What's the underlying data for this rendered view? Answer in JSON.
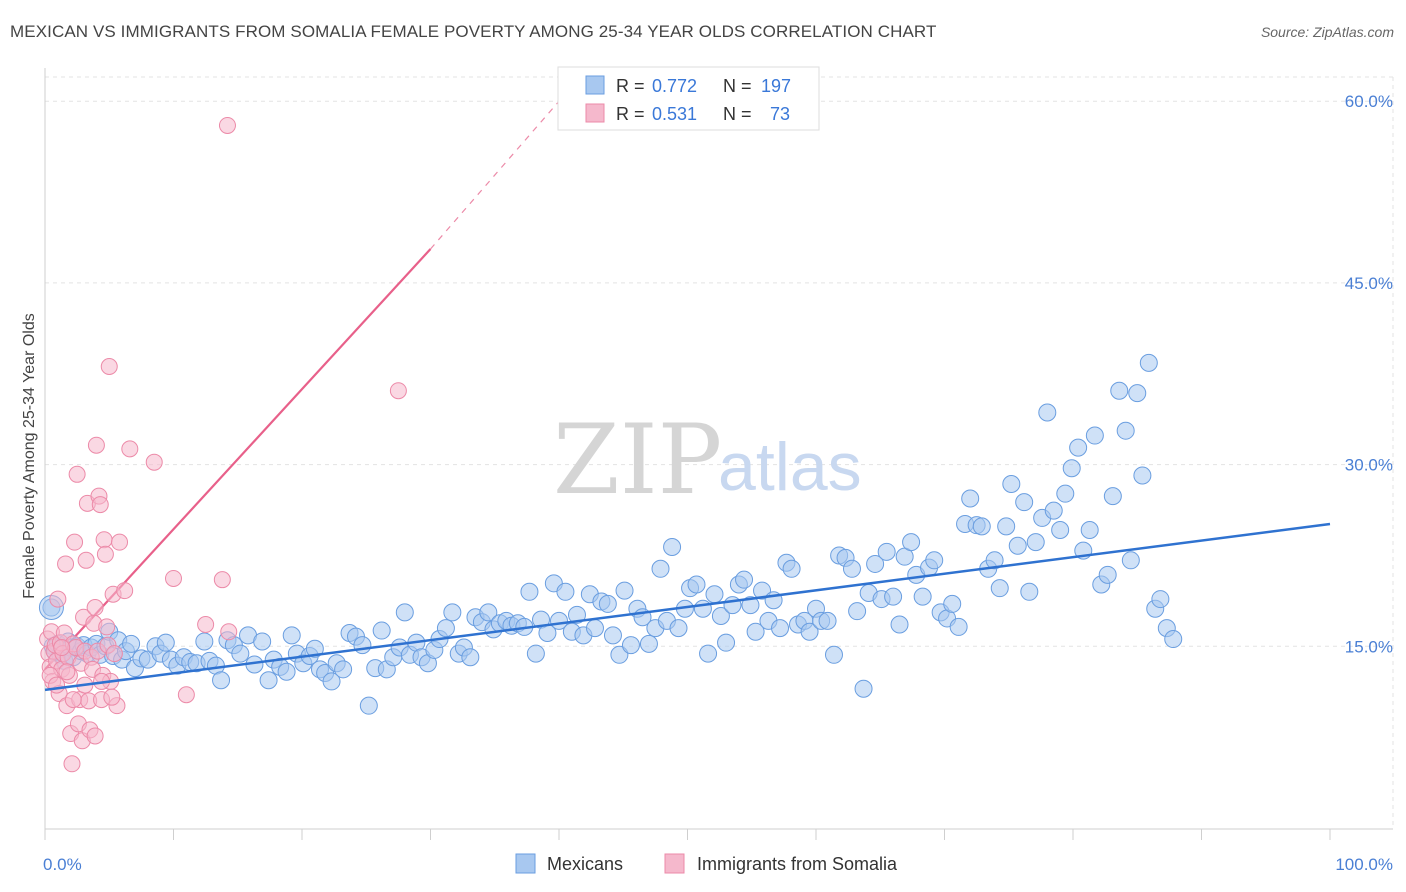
{
  "title": "MEXICAN VS IMMIGRANTS FROM SOMALIA FEMALE POVERTY AMONG 25-34 YEAR OLDS CORRELATION CHART",
  "source": "Source: ZipAtlas.com",
  "colors": {
    "mexicans_fill": "#a8c8f0",
    "mexicans_stroke": "#6a9ee0",
    "mexicans_line": "#2f72d0",
    "somalia_fill": "#f5b8cc",
    "somalia_stroke": "#ec8aa8",
    "somalia_line": "#e8608a",
    "grid": "#e3e3e3",
    "tick_label": "#4a7fd4"
  },
  "watermark": {
    "zip": "ZIP",
    "atlas": "atlas"
  },
  "legend": {
    "r_label": "R =",
    "n_label": "N =",
    "rows": [
      {
        "name": "Mexicans",
        "r": "0.772",
        "n": "197"
      },
      {
        "name": "Immigrants from Somalia",
        "r": "0.531",
        "n": "73"
      }
    ]
  },
  "chart_data": {
    "type": "scatter",
    "title": "MEXICAN VS IMMIGRANTS FROM SOMALIA FEMALE POVERTY AMONG 25-34 YEAR OLDS CORRELATION CHART",
    "xlabel": "",
    "ylabel": "Female Poverty Among 25-34 Year Olds",
    "xlim": [
      0,
      100
    ],
    "ylim": [
      0,
      62
    ],
    "x_tick_labels": [
      "0.0%",
      "100.0%"
    ],
    "y_ticks": [
      15,
      30,
      45,
      60
    ],
    "y_tick_labels": [
      "15.0%",
      "30.0%",
      "45.0%",
      "60.0%"
    ],
    "grid": true,
    "legend_position": "top-center",
    "series": [
      {
        "name": "Mexicans",
        "r": 0.772,
        "n": 197,
        "trend": {
          "x": [
            0,
            100
          ],
          "y": [
            11.4,
            25.1
          ]
        },
        "points": [
          [
            0.5,
            18.2
          ],
          [
            0.6,
            15
          ],
          [
            0.8,
            14.5
          ],
          [
            1,
            15.2
          ],
          [
            1.2,
            14.3
          ],
          [
            1.5,
            13.8
          ],
          [
            1.8,
            15.4
          ],
          [
            2,
            14.9
          ],
          [
            2.2,
            14.1
          ],
          [
            2.5,
            15
          ],
          [
            2.8,
            14.6
          ],
          [
            3,
            15.1
          ],
          [
            3.3,
            14.4
          ],
          [
            3.6,
            14.9
          ],
          [
            4,
            15.2
          ],
          [
            4.3,
            14.3
          ],
          [
            4.7,
            15
          ],
          [
            5,
            16.2
          ],
          [
            5.3,
            14.2
          ],
          [
            5.7,
            15.5
          ],
          [
            6,
            13.9
          ],
          [
            6.3,
            14.6
          ],
          [
            6.7,
            15.2
          ],
          [
            7,
            13.2
          ],
          [
            7.5,
            14
          ],
          [
            8,
            13.9
          ],
          [
            8.6,
            15
          ],
          [
            9,
            14.4
          ],
          [
            9.4,
            15.3
          ],
          [
            9.8,
            13.9
          ],
          [
            10.3,
            13.4
          ],
          [
            10.8,
            14.1
          ],
          [
            11.3,
            13.7
          ],
          [
            11.8,
            13.6
          ],
          [
            12.4,
            15.4
          ],
          [
            12.8,
            13.8
          ],
          [
            13.3,
            13.4
          ],
          [
            13.7,
            12.2
          ],
          [
            14.2,
            15.5
          ],
          [
            14.7,
            15.1
          ],
          [
            15.2,
            14.4
          ],
          [
            15.8,
            15.9
          ],
          [
            16.3,
            13.5
          ],
          [
            16.9,
            15.4
          ],
          [
            17.4,
            12.2
          ],
          [
            17.8,
            13.9
          ],
          [
            18.3,
            13.3
          ],
          [
            18.8,
            12.9
          ],
          [
            19.2,
            15.9
          ],
          [
            19.6,
            14.4
          ],
          [
            20.1,
            13.6
          ],
          [
            20.6,
            14.2
          ],
          [
            21,
            14.8
          ],
          [
            21.4,
            13.1
          ],
          [
            21.8,
            12.8
          ],
          [
            22.3,
            12.1
          ],
          [
            22.7,
            13.6
          ],
          [
            23.2,
            13.1
          ],
          [
            23.7,
            16.1
          ],
          [
            24.2,
            15.8
          ],
          [
            24.7,
            15.1
          ],
          [
            25.2,
            10.1
          ],
          [
            25.7,
            13.2
          ],
          [
            26.2,
            16.3
          ],
          [
            26.6,
            13.1
          ],
          [
            27.1,
            14.1
          ],
          [
            27.6,
            14.9
          ],
          [
            28,
            17.8
          ],
          [
            28.4,
            14.3
          ],
          [
            28.9,
            15.3
          ],
          [
            29.3,
            14.1
          ],
          [
            29.8,
            13.6
          ],
          [
            30.3,
            14.7
          ],
          [
            30.7,
            15.6
          ],
          [
            31.2,
            16.5
          ],
          [
            31.7,
            17.8
          ],
          [
            32.2,
            14.4
          ],
          [
            32.6,
            14.9
          ],
          [
            33.1,
            14.1
          ],
          [
            33.5,
            17.4
          ],
          [
            34,
            17
          ],
          [
            34.5,
            17.8
          ],
          [
            34.9,
            16.4
          ],
          [
            35.4,
            16.9
          ],
          [
            35.9,
            17.1
          ],
          [
            36.3,
            16.7
          ],
          [
            36.8,
            16.9
          ],
          [
            37.3,
            16.6
          ],
          [
            37.7,
            19.5
          ],
          [
            38.2,
            14.4
          ],
          [
            38.6,
            17.2
          ],
          [
            39.1,
            16.1
          ],
          [
            39.6,
            20.2
          ],
          [
            40,
            17.1
          ],
          [
            40.5,
            19.5
          ],
          [
            41,
            16.2
          ],
          [
            41.4,
            17.6
          ],
          [
            41.9,
            15.9
          ],
          [
            42.4,
            19.3
          ],
          [
            42.8,
            16.5
          ],
          [
            43.3,
            18.7
          ],
          [
            43.8,
            18.5
          ],
          [
            44.2,
            15.9
          ],
          [
            44.7,
            14.3
          ],
          [
            45.1,
            19.6
          ],
          [
            45.6,
            15.1
          ],
          [
            46.1,
            18.1
          ],
          [
            46.5,
            17.4
          ],
          [
            47,
            15.2
          ],
          [
            47.5,
            16.5
          ],
          [
            47.9,
            21.4
          ],
          [
            48.4,
            17.1
          ],
          [
            48.8,
            23.2
          ],
          [
            49.3,
            16.5
          ],
          [
            49.8,
            18.1
          ],
          [
            50.2,
            19.8
          ],
          [
            50.7,
            20.1
          ],
          [
            51.2,
            18.1
          ],
          [
            51.6,
            14.4
          ],
          [
            52.1,
            19.3
          ],
          [
            52.6,
            17.5
          ],
          [
            53,
            15.3
          ],
          [
            53.5,
            18.4
          ],
          [
            54,
            20.1
          ],
          [
            54.4,
            20.5
          ],
          [
            54.9,
            18.4
          ],
          [
            55.3,
            16.2
          ],
          [
            55.8,
            19.6
          ],
          [
            56.3,
            17.1
          ],
          [
            56.7,
            18.8
          ],
          [
            57.2,
            16.5
          ],
          [
            57.7,
            21.9
          ],
          [
            58.1,
            21.4
          ],
          [
            58.6,
            16.8
          ],
          [
            59.1,
            17.1
          ],
          [
            59.5,
            16.2
          ],
          [
            60,
            18.1
          ],
          [
            60.4,
            17.1
          ],
          [
            60.9,
            17.1
          ],
          [
            61.4,
            14.3
          ],
          [
            61.8,
            22.5
          ],
          [
            62.3,
            22.3
          ],
          [
            62.8,
            21.4
          ],
          [
            63.2,
            17.9
          ],
          [
            63.7,
            11.5
          ],
          [
            64.1,
            19.4
          ],
          [
            64.6,
            21.8
          ],
          [
            65.1,
            18.9
          ],
          [
            65.5,
            22.8
          ],
          [
            66,
            19.1
          ],
          [
            66.5,
            16.8
          ],
          [
            66.9,
            22.4
          ],
          [
            67.4,
            23.6
          ],
          [
            67.8,
            20.9
          ],
          [
            68.3,
            19.1
          ],
          [
            68.8,
            21.5
          ],
          [
            69.2,
            22.1
          ],
          [
            69.7,
            17.8
          ],
          [
            70.2,
            17.3
          ],
          [
            70.6,
            18.5
          ],
          [
            71.1,
            16.6
          ],
          [
            71.6,
            25.1
          ],
          [
            72,
            27.2
          ],
          [
            72.5,
            25
          ],
          [
            72.9,
            24.9
          ],
          [
            73.4,
            21.4
          ],
          [
            73.9,
            22.1
          ],
          [
            74.3,
            19.8
          ],
          [
            74.8,
            24.9
          ],
          [
            75.2,
            28.4
          ],
          [
            75.7,
            23.3
          ],
          [
            76.2,
            26.9
          ],
          [
            76.6,
            19.5
          ],
          [
            77.1,
            23.6
          ],
          [
            77.6,
            25.6
          ],
          [
            78,
            34.3
          ],
          [
            78.5,
            26.2
          ],
          [
            79,
            24.6
          ],
          [
            79.4,
            27.6
          ],
          [
            79.9,
            29.7
          ],
          [
            80.4,
            31.4
          ],
          [
            80.8,
            22.9
          ],
          [
            81.3,
            24.6
          ],
          [
            81.7,
            32.4
          ],
          [
            82.2,
            20.1
          ],
          [
            82.7,
            20.9
          ],
          [
            83.1,
            27.4
          ],
          [
            83.6,
            36.1
          ],
          [
            84.1,
            32.8
          ],
          [
            84.5,
            22.1
          ],
          [
            85,
            35.9
          ],
          [
            85.4,
            29.1
          ],
          [
            85.9,
            38.4
          ],
          [
            86.4,
            18.1
          ],
          [
            86.8,
            18.9
          ],
          [
            87.3,
            16.5
          ],
          [
            87.8,
            15.6
          ]
        ]
      },
      {
        "name": "Immigrants from Somalia",
        "r": 0.531,
        "n": 73,
        "trend": {
          "x": [
            0,
            30
          ],
          "y": [
            13.1,
            47.8
          ],
          "dashed_extension_to": [
            40,
            60
          ]
        },
        "points": [
          [
            0.2,
            15.6
          ],
          [
            0.3,
            14.4
          ],
          [
            0.4,
            13.3
          ],
          [
            0.5,
            16.2
          ],
          [
            0.6,
            12.1
          ],
          [
            0.7,
            14.6
          ],
          [
            0.8,
            15.1
          ],
          [
            0.9,
            13.8
          ],
          [
            1,
            18.9
          ],
          [
            1.1,
            11.1
          ],
          [
            1.2,
            15.3
          ],
          [
            1.3,
            13.1
          ],
          [
            1.4,
            14.4
          ],
          [
            1.5,
            16.1
          ],
          [
            1.6,
            21.8
          ],
          [
            1.7,
            10.1
          ],
          [
            1.8,
            14.1
          ],
          [
            1.9,
            12.6
          ],
          [
            2,
            7.8
          ],
          [
            2.1,
            5.3
          ],
          [
            2.2,
            15.2
          ],
          [
            2.3,
            23.6
          ],
          [
            2.4,
            14.9
          ],
          [
            2.5,
            29.2
          ],
          [
            2.6,
            8.6
          ],
          [
            2.7,
            10.6
          ],
          [
            2.8,
            13.6
          ],
          [
            2.9,
            7.2
          ],
          [
            3,
            17.4
          ],
          [
            3.1,
            14.6
          ],
          [
            3.2,
            22.1
          ],
          [
            3.3,
            26.8
          ],
          [
            3.4,
            10.5
          ],
          [
            3.5,
            8.1
          ],
          [
            3.6,
            14.1
          ],
          [
            3.7,
            13.1
          ],
          [
            3.8,
            16.9
          ],
          [
            3.9,
            18.2
          ],
          [
            4,
            31.6
          ],
          [
            4.1,
            14.6
          ],
          [
            4.2,
            27.4
          ],
          [
            4.3,
            26.7
          ],
          [
            4.4,
            10.6
          ],
          [
            4.5,
            12.6
          ],
          [
            4.6,
            23.8
          ],
          [
            4.7,
            22.6
          ],
          [
            4.8,
            16.6
          ],
          [
            4.9,
            15.1
          ],
          [
            5,
            38.1
          ],
          [
            5.1,
            12.1
          ],
          [
            5.3,
            19.3
          ],
          [
            5.4,
            14.4
          ],
          [
            5.6,
            10.1
          ],
          [
            5.8,
            23.6
          ],
          [
            6.2,
            19.6
          ],
          [
            6.6,
            31.3
          ],
          [
            8.5,
            30.2
          ],
          [
            10,
            20.6
          ],
          [
            11,
            11
          ],
          [
            12.5,
            16.8
          ],
          [
            13.8,
            20.5
          ],
          [
            14.3,
            16.2
          ],
          [
            14.2,
            58
          ],
          [
            27.5,
            36.1
          ],
          [
            0.4,
            12.6
          ],
          [
            0.9,
            11.8
          ],
          [
            1.3,
            14.9
          ],
          [
            1.7,
            12.9
          ],
          [
            2.2,
            10.6
          ],
          [
            3.1,
            11.8
          ],
          [
            3.9,
            7.6
          ],
          [
            4.4,
            12.1
          ],
          [
            5.2,
            10.8
          ]
        ]
      }
    ]
  }
}
